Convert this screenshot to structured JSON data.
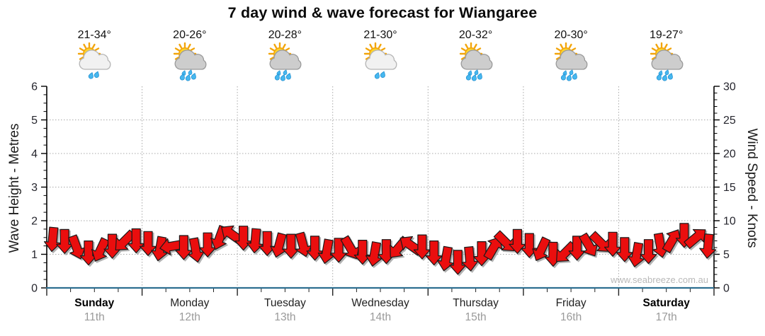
{
  "title": "7 day wind & wave forecast for Wiangaree",
  "watermark": "www.seabreeze.com.au",
  "days": [
    {
      "name": "Sunday",
      "date": "11th",
      "temp": "21-34°",
      "icon": "sun-cloud-light-rain-icon",
      "bold": true
    },
    {
      "name": "Monday",
      "date": "12th",
      "temp": "20-26°",
      "icon": "sun-cloud-rain-icon",
      "bold": false
    },
    {
      "name": "Tuesday",
      "date": "13th",
      "temp": "20-28°",
      "icon": "sun-cloud-rain-icon",
      "bold": false
    },
    {
      "name": "Wednesday",
      "date": "14th",
      "temp": "21-30°",
      "icon": "sun-cloud-light-rain-icon",
      "bold": false
    },
    {
      "name": "Thursday",
      "date": "15th",
      "temp": "20-32°",
      "icon": "sun-cloud-rain-icon",
      "bold": false
    },
    {
      "name": "Friday",
      "date": "16th",
      "temp": "20-30°",
      "icon": "sun-cloud-rain-icon",
      "bold": false
    },
    {
      "name": "Saturday",
      "date": "17th",
      "temp": "19-27°",
      "icon": "sun-cloud-rain-icon",
      "bold": true
    }
  ],
  "axes": {
    "left": {
      "label": "Wave Height - Metres",
      "ticks": [
        0,
        1,
        2,
        3,
        4,
        5,
        6
      ],
      "range": [
        0,
        6
      ],
      "minor_step": 0.25
    },
    "right": {
      "label": "Wind Speed - Knots",
      "ticks": [
        0,
        5,
        10,
        15,
        20,
        25,
        30
      ],
      "range": [
        0,
        30
      ],
      "minor_step": 1
    }
  },
  "colors": {
    "arrow_fill": "#ea0e0e",
    "arrow_stroke": "#1a1a1a",
    "axis": "#000000",
    "x_axis_line": "#2e6f91",
    "grid": "#a8a8a8",
    "date_text": "#9a9a9a",
    "watermark_text": "#b9b9b9"
  },
  "chart_data": {
    "type": "area",
    "title": "7 day wind & wave forecast for Wiangaree",
    "x_categories": [
      "Sunday 11th",
      "Monday 12th",
      "Tuesday 13th",
      "Wednesday 14th",
      "Thursday 15th",
      "Friday 16th",
      "Saturday 17th"
    ],
    "samples_per_day": 8,
    "ylabel_left": "Wave Height - Metres",
    "ylabel_right": "Wind Speed - Knots",
    "ylim_left": [
      0,
      6
    ],
    "ylim_right": [
      0,
      30
    ],
    "grid": true,
    "series": [
      {
        "name": "Wind Speed",
        "unit": "knots",
        "style": "red direction arrows",
        "values": [
          7.2,
          6.9,
          6.0,
          5.2,
          5.6,
          6.2,
          6.9,
          7.0,
          6.6,
          5.8,
          6.2,
          6.0,
          5.6,
          6.4,
          7.4,
          8.0,
          7.4,
          7.0,
          6.6,
          6.3,
          6.2,
          6.4,
          5.9,
          5.4,
          5.6,
          5.9,
          5.3,
          5.0,
          5.4,
          5.9,
          6.4,
          6.1,
          5.2,
          4.3,
          3.8,
          4.3,
          5.1,
          6.0,
          6.8,
          6.9,
          6.3,
          5.7,
          5.0,
          5.2,
          5.9,
          6.3,
          6.7,
          6.5,
          5.7,
          4.9,
          5.4,
          6.3,
          7.1,
          7.8,
          7.5,
          6.2
        ],
        "arrow_directions_deg": [
          95,
          90,
          70,
          90,
          115,
          90,
          135,
          90,
          90,
          100,
          170,
          90,
          80,
          90,
          110,
          215,
          90,
          95,
          90,
          105,
          90,
          75,
          90,
          100,
          90,
          60,
          90,
          100,
          90,
          130,
          215,
          90,
          90,
          100,
          90,
          85,
          90,
          300,
          45,
          90,
          90,
          115,
          90,
          135,
          90,
          60,
          45,
          90,
          90,
          100,
          90,
          80,
          300,
          90,
          320,
          95
        ]
      },
      {
        "name": "Wave Height",
        "unit": "metres",
        "style": "flat teal line along baseline",
        "values": [
          0,
          0,
          0,
          0,
          0,
          0,
          0
        ]
      }
    ]
  }
}
